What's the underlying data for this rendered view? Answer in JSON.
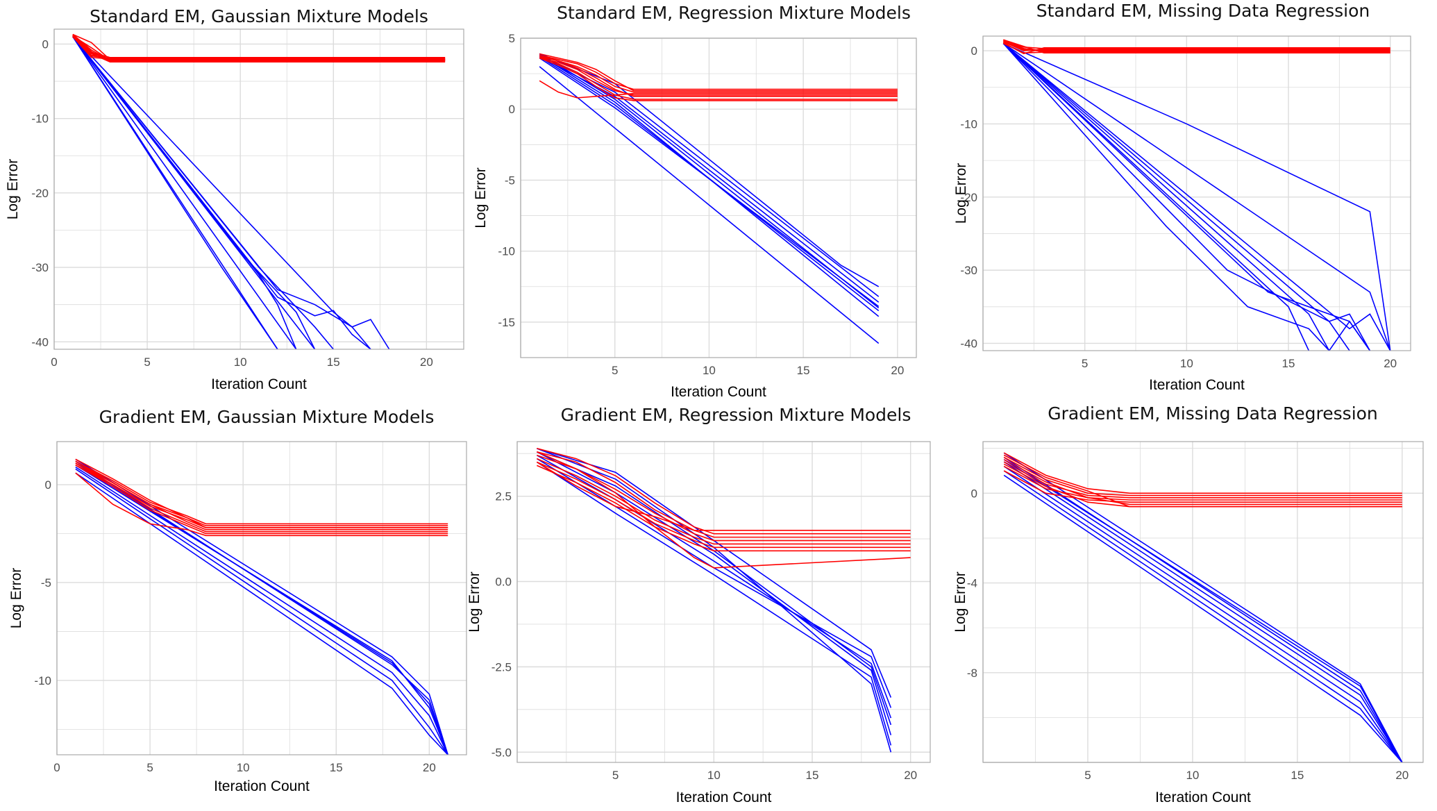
{
  "figure": {
    "colors": {
      "converged": "#ff0000",
      "diverged": "#0000ff",
      "grid": "#dcdcdc",
      "panel_border": "#a9a9a9"
    }
  },
  "chart_data": [
    {
      "type": "line",
      "title": "Standard EM, Gaussian Mixture Models",
      "xlabel": "Iteration Count",
      "ylabel": "Log Error",
      "xlim": [
        0,
        22
      ],
      "ylim": [
        -41,
        2
      ],
      "xticks": [
        0,
        5,
        10,
        15,
        20
      ],
      "yticks": [
        0,
        -10,
        -20,
        -30,
        -40
      ],
      "grid": true,
      "red_series": {
        "x": [
          1,
          2,
          3,
          21
        ],
        "lines": [
          [
            1.2,
            -1.5,
            -2.0,
            -2.0
          ],
          [
            1.0,
            -1.2,
            -2.1,
            -2.1
          ],
          [
            1.3,
            -0.8,
            -2.2,
            -2.2
          ],
          [
            1.1,
            -1.6,
            -1.9,
            -1.9
          ],
          [
            1.2,
            -1.0,
            -2.3,
            -2.3
          ],
          [
            1.0,
            -1.8,
            -2.0,
            -2.0
          ],
          [
            1.3,
            0.2,
            -2.1,
            -2.1
          ],
          [
            1.1,
            -0.5,
            -2.2,
            -2.2
          ],
          [
            1.2,
            -1.3,
            -2.4,
            -2.4
          ],
          [
            1.0,
            -1.1,
            -1.8,
            -1.8
          ]
        ]
      },
      "blue_series": [
        {
          "x": [
            1,
            12
          ],
          "y": [
            1,
            -41
          ]
        },
        {
          "x": [
            1,
            13
          ],
          "y": [
            1,
            -41
          ]
        },
        {
          "x": [
            1,
            14
          ],
          "y": [
            1,
            -41
          ]
        },
        {
          "x": [
            1,
            12,
            14,
            15,
            16,
            17
          ],
          "y": [
            1,
            -34,
            -36.5,
            -35.8,
            -39,
            -41
          ]
        },
        {
          "x": [
            1,
            12,
            14,
            16,
            17,
            18
          ],
          "y": [
            1,
            -33,
            -35,
            -38,
            -37,
            -41
          ]
        },
        {
          "x": [
            1,
            10,
            13,
            14
          ],
          "y": [
            1,
            -28,
            -36,
            -41
          ]
        },
        {
          "x": [
            1,
            11,
            12,
            13
          ],
          "y": [
            1,
            -31,
            -35,
            -41
          ]
        },
        {
          "x": [
            1,
            15,
            16,
            17
          ],
          "y": [
            1,
            -36,
            -38,
            -41
          ]
        },
        {
          "x": [
            1,
            9,
            12
          ],
          "y": [
            1,
            -30,
            -41
          ]
        },
        {
          "x": [
            1,
            11,
            14,
            15
          ],
          "y": [
            1,
            -30,
            -38,
            -41
          ]
        }
      ]
    },
    {
      "type": "line",
      "title": "Standard EM, Regression Mixture Models",
      "xlabel": "Iteration Count",
      "ylabel": "Log Error",
      "xlim": [
        0,
        21
      ],
      "ylim": [
        -17.5,
        5
      ],
      "xticks": [
        5,
        10,
        15,
        20
      ],
      "yticks": [
        5,
        0,
        -5,
        -10,
        -15
      ],
      "grid": true,
      "red_series": {
        "x": [
          1,
          2,
          3,
          4,
          5,
          6,
          20
        ],
        "lines": [
          [
            3.8,
            3.5,
            3.2,
            2.6,
            1.8,
            1.4,
            1.4
          ],
          [
            3.7,
            3.4,
            3.0,
            2.4,
            1.6,
            1.2,
            1.2
          ],
          [
            3.6,
            3.3,
            2.8,
            2.0,
            1.3,
            1.0,
            1.0
          ],
          [
            3.8,
            3.4,
            2.9,
            2.2,
            1.4,
            0.9,
            0.9
          ],
          [
            3.7,
            3.2,
            2.6,
            1.8,
            1.0,
            0.7,
            0.7
          ],
          [
            3.6,
            3.1,
            2.5,
            1.6,
            0.8,
            0.6,
            0.6
          ],
          [
            2.0,
            1.2,
            0.8,
            0.9,
            1.0,
            1.1,
            1.1
          ],
          [
            3.9,
            3.6,
            3.3,
            2.8,
            2.0,
            1.3,
            1.3
          ]
        ]
      },
      "blue_series": [
        {
          "x": [
            1,
            19
          ],
          "y": [
            3.0,
            -16.5
          ]
        },
        {
          "x": [
            1,
            5,
            19
          ],
          "y": [
            3.8,
            0.5,
            -14.6
          ]
        },
        {
          "x": [
            1,
            5,
            19
          ],
          "y": [
            3.9,
            0.7,
            -14.0
          ]
        },
        {
          "x": [
            1,
            5,
            19
          ],
          "y": [
            3.7,
            0.9,
            -13.6
          ]
        },
        {
          "x": [
            1,
            5,
            19
          ],
          "y": [
            3.8,
            1.2,
            -13.2
          ]
        },
        {
          "x": [
            1,
            5,
            19
          ],
          "y": [
            3.7,
            0.3,
            -14.2
          ]
        },
        {
          "x": [
            1,
            5,
            17,
            19
          ],
          "y": [
            3.9,
            1.8,
            -11.0,
            -12.5
          ]
        },
        {
          "x": [
            1,
            5,
            19
          ],
          "y": [
            3.6,
            0.1,
            -13.9
          ]
        }
      ]
    },
    {
      "type": "line",
      "title": "Standard EM, Missing Data Regression",
      "xlabel": "Iteration Count",
      "ylabel": "Log Error",
      "xlim": [
        0,
        21
      ],
      "ylim": [
        -41,
        2
      ],
      "xticks": [
        5,
        10,
        15,
        20
      ],
      "yticks": [
        0,
        -10,
        -20,
        -30,
        -40
      ],
      "grid": true,
      "red_series": {
        "x": [
          1,
          2,
          3,
          20
        ],
        "lines": [
          [
            1.5,
            0.3,
            0.0,
            0.0
          ],
          [
            1.2,
            0.0,
            0.2,
            0.2
          ],
          [
            1.0,
            -0.3,
            -0.2,
            -0.2
          ],
          [
            1.4,
            0.5,
            0.3,
            0.3
          ],
          [
            1.3,
            0.2,
            -0.1,
            -0.1
          ],
          [
            1.1,
            -0.4,
            0.4,
            0.4
          ],
          [
            1.5,
            0.6,
            -0.3,
            -0.3
          ],
          [
            1.2,
            0.1,
            0.1,
            0.1
          ]
        ]
      },
      "blue_series": [
        {
          "x": [
            1,
            10,
            19,
            20
          ],
          "y": [
            1,
            -10,
            -22,
            -41
          ]
        },
        {
          "x": [
            1,
            19,
            20
          ],
          "y": [
            1,
            -33,
            -41
          ]
        },
        {
          "x": [
            1,
            9,
            13,
            16,
            17
          ],
          "y": [
            1,
            -24,
            -35,
            -38,
            -41
          ]
        },
        {
          "x": [
            1,
            17,
            18,
            19
          ],
          "y": [
            1,
            -37,
            -36,
            -41
          ]
        },
        {
          "x": [
            1,
            16,
            17,
            18,
            19
          ],
          "y": [
            1,
            -36,
            -41,
            -37,
            -41
          ]
        },
        {
          "x": [
            1,
            18,
            19,
            20
          ],
          "y": [
            1,
            -38,
            -36,
            -41
          ]
        },
        {
          "x": [
            1,
            15,
            16
          ],
          "y": [
            1,
            -35,
            -41
          ]
        },
        {
          "x": [
            1,
            14,
            18,
            19
          ],
          "y": [
            1,
            -33,
            -37,
            -41
          ]
        },
        {
          "x": [
            1,
            12,
            17,
            18
          ],
          "y": [
            1,
            -30,
            -37,
            -41
          ]
        }
      ]
    },
    {
      "type": "line",
      "title": "Gradient EM, Gaussian Mixture Models",
      "xlabel": "Iteration Count",
      "ylabel": "Log Error",
      "xlim": [
        0,
        22
      ],
      "ylim": [
        -13.8,
        2.2
      ],
      "xticks": [
        0,
        5,
        10,
        15,
        20
      ],
      "yticks": [
        0,
        -5,
        -10
      ],
      "grid": true,
      "red_series": {
        "x": [
          1,
          3,
          5,
          7,
          8,
          21
        ],
        "lines": [
          [
            1.2,
            0.2,
            -0.9,
            -1.6,
            -2.0,
            -2.0
          ],
          [
            1.1,
            0.1,
            -1.0,
            -1.7,
            -2.1,
            -2.1
          ],
          [
            1.0,
            0.0,
            -1.1,
            -1.8,
            -2.2,
            -2.2
          ],
          [
            1.2,
            0.1,
            -1.0,
            -1.9,
            -2.3,
            -2.3
          ],
          [
            1.1,
            0.0,
            -1.2,
            -2.0,
            -2.4,
            -2.4
          ],
          [
            1.0,
            -0.1,
            -1.3,
            -2.1,
            -2.5,
            -2.5
          ],
          [
            0.6,
            -1.0,
            -2.0,
            -2.3,
            -2.6,
            -2.6
          ],
          [
            1.3,
            0.3,
            -0.8,
            -1.7,
            -2.2,
            -2.2
          ]
        ]
      },
      "blue_series": [
        {
          "x": [
            1,
            18,
            20,
            21
          ],
          "y": [
            1.2,
            -9.2,
            -11.0,
            -13.8
          ]
        },
        {
          "x": [
            1,
            18,
            20,
            21
          ],
          "y": [
            1.0,
            -9.0,
            -11.4,
            -13.8
          ]
        },
        {
          "x": [
            1,
            18,
            20,
            21
          ],
          "y": [
            1.3,
            -8.8,
            -10.7,
            -13.8
          ]
        },
        {
          "x": [
            1,
            18,
            20,
            21
          ],
          "y": [
            0.9,
            -9.6,
            -11.8,
            -13.8
          ]
        },
        {
          "x": [
            1,
            18,
            20,
            21
          ],
          "y": [
            0.8,
            -10.0,
            -12.4,
            -13.8
          ]
        },
        {
          "x": [
            1,
            18,
            20,
            21
          ],
          "y": [
            0.6,
            -10.4,
            -12.8,
            -13.8
          ]
        },
        {
          "x": [
            1,
            18,
            20,
            21
          ],
          "y": [
            1.1,
            -9.1,
            -11.2,
            -13.8
          ]
        }
      ]
    },
    {
      "type": "line",
      "title": "Gradient EM, Regression Mixture Models",
      "xlabel": "Iteration Count",
      "ylabel": "Log Error",
      "xlim": [
        0,
        21
      ],
      "ylim": [
        -5.3,
        4.1
      ],
      "xticks": [
        5,
        10,
        15,
        20
      ],
      "yticks": [
        2.5,
        0.0,
        -2.5,
        -5.0
      ],
      "grid": true,
      "red_series": {
        "x": [
          1,
          3,
          5,
          7,
          9,
          10,
          20
        ],
        "lines": [
          [
            3.9,
            3.6,
            3.1,
            2.3,
            1.6,
            1.4,
            1.4
          ],
          [
            3.8,
            3.5,
            2.9,
            2.1,
            1.5,
            1.3,
            1.3
          ],
          [
            3.7,
            3.3,
            2.7,
            2.0,
            1.4,
            1.2,
            1.2
          ],
          [
            3.6,
            3.1,
            2.5,
            1.8,
            1.3,
            1.1,
            1.1
          ],
          [
            3.5,
            3.0,
            2.4,
            1.7,
            1.2,
            1.0,
            1.0
          ],
          [
            3.4,
            2.9,
            2.3,
            1.6,
            1.1,
            0.9,
            0.9
          ],
          [
            3.8,
            3.3,
            2.6,
            1.6,
            0.7,
            0.4,
            0.7
          ],
          [
            3.5,
            2.8,
            2.2,
            1.9,
            1.5,
            1.5,
            1.5
          ]
        ]
      },
      "blue_series": [
        {
          "x": [
            1,
            5,
            10,
            18,
            19
          ],
          "y": [
            3.9,
            3.0,
            1.0,
            -3.0,
            -5.0
          ]
        },
        {
          "x": [
            1,
            5,
            10,
            18,
            19
          ],
          "y": [
            3.8,
            2.6,
            0.8,
            -2.6,
            -4.5
          ]
        },
        {
          "x": [
            1,
            5,
            10,
            18,
            19
          ],
          "y": [
            3.7,
            2.4,
            0.6,
            -2.4,
            -4.0
          ]
        },
        {
          "x": [
            1,
            5,
            10,
            18,
            19
          ],
          "y": [
            3.6,
            2.2,
            0.4,
            -2.2,
            -3.7
          ]
        },
        {
          "x": [
            1,
            5,
            10,
            18,
            19
          ],
          "y": [
            3.9,
            3.2,
            1.2,
            -2.0,
            -3.4
          ]
        },
        {
          "x": [
            1,
            5,
            10,
            18,
            19
          ],
          "y": [
            3.5,
            2.0,
            0.2,
            -2.8,
            -4.8
          ]
        },
        {
          "x": [
            1,
            5,
            10,
            18,
            19
          ],
          "y": [
            3.8,
            2.8,
            0.9,
            -2.5,
            -4.2
          ]
        }
      ]
    },
    {
      "type": "line",
      "title": "Gradient EM, Missing Data Regression",
      "xlabel": "Iteration Count",
      "ylabel": "Log Error",
      "xlim": [
        0,
        21
      ],
      "ylim": [
        -12,
        2.3
      ],
      "xticks": [
        5,
        10,
        15,
        20
      ],
      "yticks": [
        0,
        -4,
        -8
      ],
      "grid": true,
      "red_series": {
        "x": [
          1,
          3,
          5,
          7,
          20
        ],
        "lines": [
          [
            1.8,
            0.8,
            0.2,
            0.0,
            0.0
          ],
          [
            1.6,
            0.6,
            0.0,
            -0.1,
            -0.1
          ],
          [
            1.4,
            0.4,
            -0.1,
            -0.2,
            -0.2
          ],
          [
            1.2,
            0.2,
            -0.2,
            -0.3,
            -0.3
          ],
          [
            1.0,
            0.0,
            -0.3,
            -0.4,
            -0.4
          ],
          [
            1.5,
            0.5,
            -0.2,
            -0.5,
            -0.5
          ],
          [
            1.7,
            0.7,
            0.1,
            -0.6,
            -0.6
          ],
          [
            1.3,
            0.3,
            -0.4,
            -0.6,
            -0.6
          ]
        ]
      },
      "blue_series": [
        {
          "x": [
            1,
            18,
            20
          ],
          "y": [
            1.8,
            -8.5,
            -12
          ]
        },
        {
          "x": [
            1,
            18,
            20
          ],
          "y": [
            1.6,
            -8.8,
            -12
          ]
        },
        {
          "x": [
            1,
            18,
            20
          ],
          "y": [
            1.4,
            -9.0,
            -12
          ]
        },
        {
          "x": [
            1,
            18,
            20
          ],
          "y": [
            1.2,
            -9.3,
            -12
          ]
        },
        {
          "x": [
            1,
            18,
            20
          ],
          "y": [
            1.0,
            -9.6,
            -12
          ]
        },
        {
          "x": [
            1,
            18,
            20
          ],
          "y": [
            0.8,
            -9.9,
            -12
          ]
        },
        {
          "x": [
            1,
            18,
            20
          ],
          "y": [
            1.5,
            -8.6,
            -12
          ]
        }
      ]
    }
  ]
}
